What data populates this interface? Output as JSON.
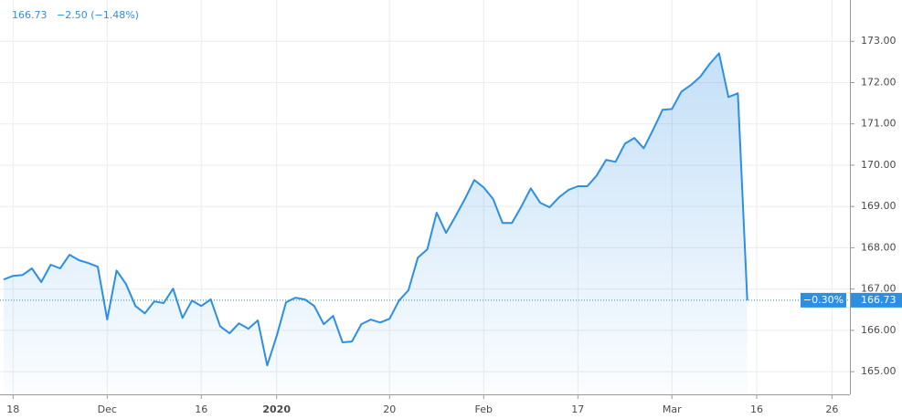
{
  "chart_data": {
    "type": "area",
    "header": {
      "price": "166.73",
      "change": "−2.50 (−1.48%)"
    },
    "price_label": "166.73",
    "percent_label": "−0.30%",
    "color": "#2d8fe3",
    "categories": [
      null,
      "18",
      null,
      null,
      null,
      null,
      null,
      null,
      null,
      null,
      null,
      "Dec",
      null,
      null,
      null,
      null,
      null,
      null,
      null,
      null,
      null,
      "16",
      null,
      null,
      null,
      null,
      null,
      null,
      null,
      "2020",
      null,
      null,
      null,
      null,
      null,
      null,
      null,
      null,
      null,
      null,
      null,
      "20",
      null,
      null,
      null,
      null,
      null,
      null,
      null,
      null,
      null,
      "Feb",
      null,
      null,
      null,
      null,
      null,
      null,
      null,
      null,
      null,
      "17",
      null,
      null,
      null,
      null,
      null,
      null,
      null,
      null,
      null,
      "Mar",
      null,
      null,
      null,
      null,
      null,
      null,
      null,
      null,
      "16",
      null,
      null,
      null,
      null,
      null,
      null,
      null,
      "26",
      null
    ],
    "values": [
      167.23,
      167.32,
      167.34,
      167.5,
      167.17,
      167.59,
      167.5,
      167.83,
      167.7,
      167.63,
      167.54,
      166.26,
      167.45,
      167.12,
      166.59,
      166.41,
      166.7,
      166.66,
      167.01,
      166.3,
      166.72,
      166.59,
      166.75,
      166.1,
      165.93,
      166.17,
      166.04,
      166.24,
      165.15,
      165.86,
      166.68,
      166.79,
      166.75,
      166.59,
      166.15,
      166.35,
      165.71,
      165.73,
      166.15,
      166.26,
      166.19,
      166.28,
      166.72,
      166.97,
      167.76,
      167.96,
      168.85,
      168.36,
      168.76,
      169.18,
      169.64,
      169.46,
      169.18,
      168.6,
      168.6,
      169.0,
      169.44,
      169.09,
      168.98,
      169.22,
      169.4,
      169.49,
      169.49,
      169.75,
      170.13,
      170.08,
      170.52,
      170.66,
      170.41,
      170.86,
      171.34,
      171.36,
      171.78,
      171.94,
      172.14,
      172.45,
      172.71,
      171.65,
      171.74,
      166.73,
      null,
      null,
      null,
      null,
      null,
      null,
      null,
      null,
      null,
      null
    ],
    "ylim": [
      164.45,
      174.0
    ],
    "yticks": [
      {
        "value": 165,
        "label": "165.00"
      },
      {
        "value": 166,
        "label": "166.00"
      },
      {
        "value": 167,
        "label": "167.00"
      },
      {
        "value": 168,
        "label": "168.00"
      },
      {
        "value": 169,
        "label": "169.00"
      },
      {
        "value": 170,
        "label": "170.00"
      },
      {
        "value": 171,
        "label": "171.00"
      },
      {
        "value": 172,
        "label": "172.00"
      },
      {
        "value": 173,
        "label": "173.00"
      }
    ],
    "grid": true
  }
}
